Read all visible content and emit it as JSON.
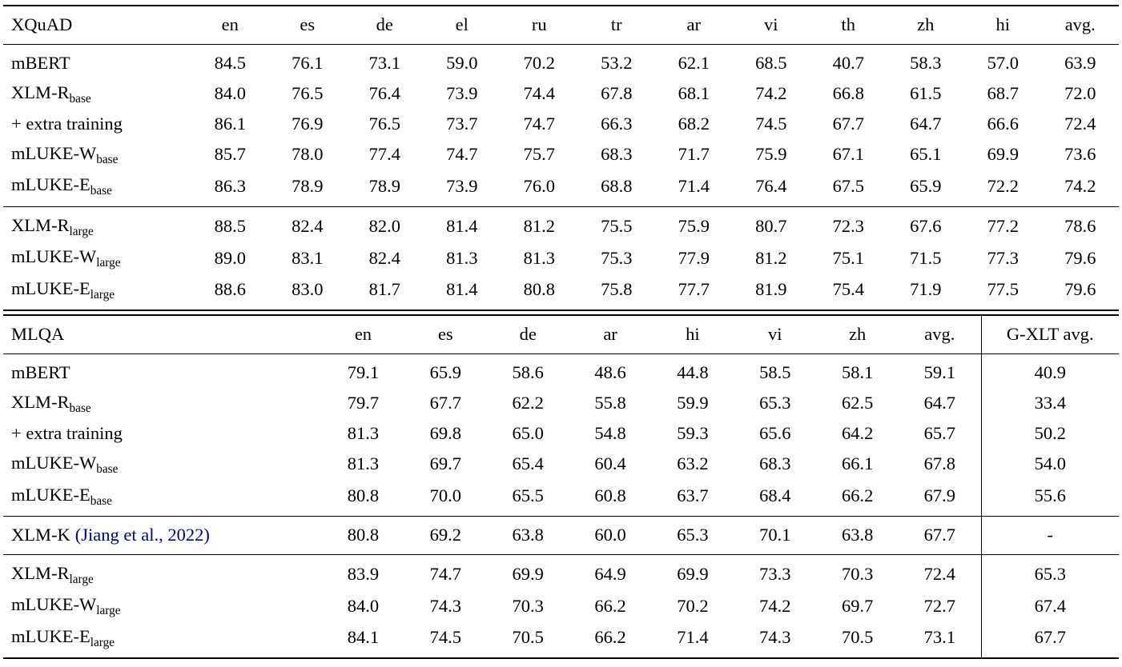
{
  "colors": {
    "text": "#000000",
    "citation": "#00008B",
    "rule": "#000000",
    "background": "#ffffff"
  },
  "tables": [
    {
      "name": "XQuAD",
      "header": [
        "en",
        "es",
        "de",
        "el",
        "ru",
        "tr",
        "ar",
        "vi",
        "th",
        "zh",
        "hi",
        "avg."
      ],
      "groups": [
        {
          "rows": [
            {
              "label": "mBERT",
              "subscript": "",
              "citation": "",
              "values": [
                "84.5",
                "76.1",
                "73.1",
                "59.0",
                "70.2",
                "53.2",
                "62.1",
                "68.5",
                "40.7",
                "58.3",
                "57.0",
                "63.9"
              ],
              "bold": []
            },
            {
              "label": "XLM-R",
              "subscript": "base",
              "citation": "",
              "values": [
                "84.0",
                "76.5",
                "76.4",
                "73.9",
                "74.4",
                "67.8",
                "68.1",
                "74.2",
                "66.8",
                "61.5",
                "68.7",
                "72.0"
              ],
              "bold": []
            },
            {
              "label": "+ extra training",
              "subscript": "",
              "citation": "",
              "values": [
                "86.1",
                "76.9",
                "76.5",
                "73.7",
                "74.7",
                "66.3",
                "68.2",
                "74.5",
                "67.7",
                "64.7",
                "66.6",
                "72.4"
              ],
              "bold": [
                8
              ]
            },
            {
              "label": "mLUKE-W",
              "subscript": "base",
              "citation": "",
              "values": [
                "85.7",
                "78.0",
                "77.4",
                "74.7",
                "75.7",
                "68.3",
                "71.7",
                "75.9",
                "67.1",
                "65.1",
                "69.9",
                "73.6"
              ],
              "bold": [
                3,
                6
              ]
            },
            {
              "label": "mLUKE-E",
              "subscript": "base",
              "citation": "",
              "values": [
                "86.3",
                "78.9",
                "78.9",
                "73.9",
                "76.0",
                "68.8",
                "71.4",
                "76.4",
                "67.5",
                "65.9",
                "72.2",
                "74.2"
              ],
              "bold": [
                0,
                1,
                2,
                4,
                5,
                7,
                9,
                10,
                11
              ]
            }
          ]
        },
        {
          "rows": [
            {
              "label": "XLM-R",
              "subscript": "large",
              "citation": "",
              "values": [
                "88.5",
                "82.4",
                "82.0",
                "81.4",
                "81.2",
                "75.5",
                "75.9",
                "80.7",
                "72.3",
                "67.6",
                "77.2",
                "78.6"
              ],
              "bold": [
                3
              ]
            },
            {
              "label": "mLUKE-W",
              "subscript": "large",
              "citation": "",
              "values": [
                "89.0",
                "83.1",
                "82.4",
                "81.3",
                "81.3",
                "75.3",
                "77.9",
                "81.2",
                "75.1",
                "71.5",
                "77.3",
                "79.6"
              ],
              "bold": [
                0,
                1,
                2,
                6,
                11
              ]
            },
            {
              "label": "mLUKE-E",
              "subscript": "large",
              "citation": "",
              "values": [
                "88.6",
                "83.0",
                "81.7",
                "81.4",
                "80.8",
                "75.8",
                "77.7",
                "81.9",
                "75.4",
                "71.9",
                "77.5",
                "79.6"
              ],
              "bold": [
                3,
                5,
                7,
                8,
                9,
                10,
                11
              ]
            }
          ]
        }
      ]
    },
    {
      "name": "MLQA",
      "header": [
        "en",
        "es",
        "de",
        "ar",
        "hi",
        "vi",
        "zh",
        "avg.",
        "G-XLT avg."
      ],
      "groups": [
        {
          "rows": [
            {
              "label": "mBERT",
              "subscript": "",
              "citation": "",
              "values": [
                "79.1",
                "65.9",
                "58.6",
                "48.6",
                "44.8",
                "58.5",
                "58.1",
                "59.1",
                "40.9"
              ],
              "bold": []
            },
            {
              "label": "XLM-R",
              "subscript": "base",
              "citation": "",
              "values": [
                "79.7",
                "67.7",
                "62.2",
                "55.8",
                "59.9",
                "65.3",
                "62.5",
                "64.7",
                "33.4"
              ],
              "bold": []
            },
            {
              "label": "+ extra training",
              "subscript": "",
              "citation": "",
              "values": [
                "81.3",
                "69.8",
                "65.0",
                "54.8",
                "59.3",
                "65.6",
                "64.2",
                "65.7",
                "50.2"
              ],
              "bold": [
                0
              ]
            },
            {
              "label": "mLUKE-W",
              "subscript": "base",
              "citation": "",
              "values": [
                "81.3",
                "69.7",
                "65.4",
                "60.4",
                "63.2",
                "68.3",
                "66.1",
                "67.8",
                "54.0"
              ],
              "bold": []
            },
            {
              "label": "mLUKE-E",
              "subscript": "base",
              "citation": "",
              "values": [
                "80.8",
                "70.0",
                "65.5",
                "60.8",
                "63.7",
                "68.4",
                "66.2",
                "67.9",
                "55.6"
              ],
              "bold": [
                1,
                2,
                3,
                4,
                5,
                6,
                7,
                8
              ]
            }
          ]
        },
        {
          "rows": [
            {
              "label": "XLM-K",
              "subscript": "",
              "citation": "(Jiang et al., 2022)",
              "values": [
                "80.8",
                "69.2",
                "63.8",
                "60.0",
                "65.3",
                "70.1",
                "63.8",
                "67.7",
                "-"
              ],
              "bold": []
            }
          ]
        },
        {
          "rows": [
            {
              "label": "XLM-R",
              "subscript": "large",
              "citation": "",
              "values": [
                "83.9",
                "74.7",
                "69.9",
                "64.9",
                "69.9",
                "73.3",
                "70.3",
                "72.4",
                "65.3"
              ],
              "bold": [
                1
              ]
            },
            {
              "label": "mLUKE-W",
              "subscript": "large",
              "citation": "",
              "values": [
                "84.0",
                "74.3",
                "70.3",
                "66.2",
                "70.2",
                "74.2",
                "69.7",
                "72.7",
                "67.4"
              ],
              "bold": [
                3
              ]
            },
            {
              "label": "mLUKE-E",
              "subscript": "large",
              "citation": "",
              "values": [
                "84.1",
                "74.5",
                "70.5",
                "66.2",
                "71.4",
                "74.3",
                "70.5",
                "73.1",
                "67.7"
              ],
              "bold": [
                0,
                2,
                3,
                4,
                5,
                6,
                7,
                8
              ]
            }
          ]
        }
      ]
    }
  ]
}
